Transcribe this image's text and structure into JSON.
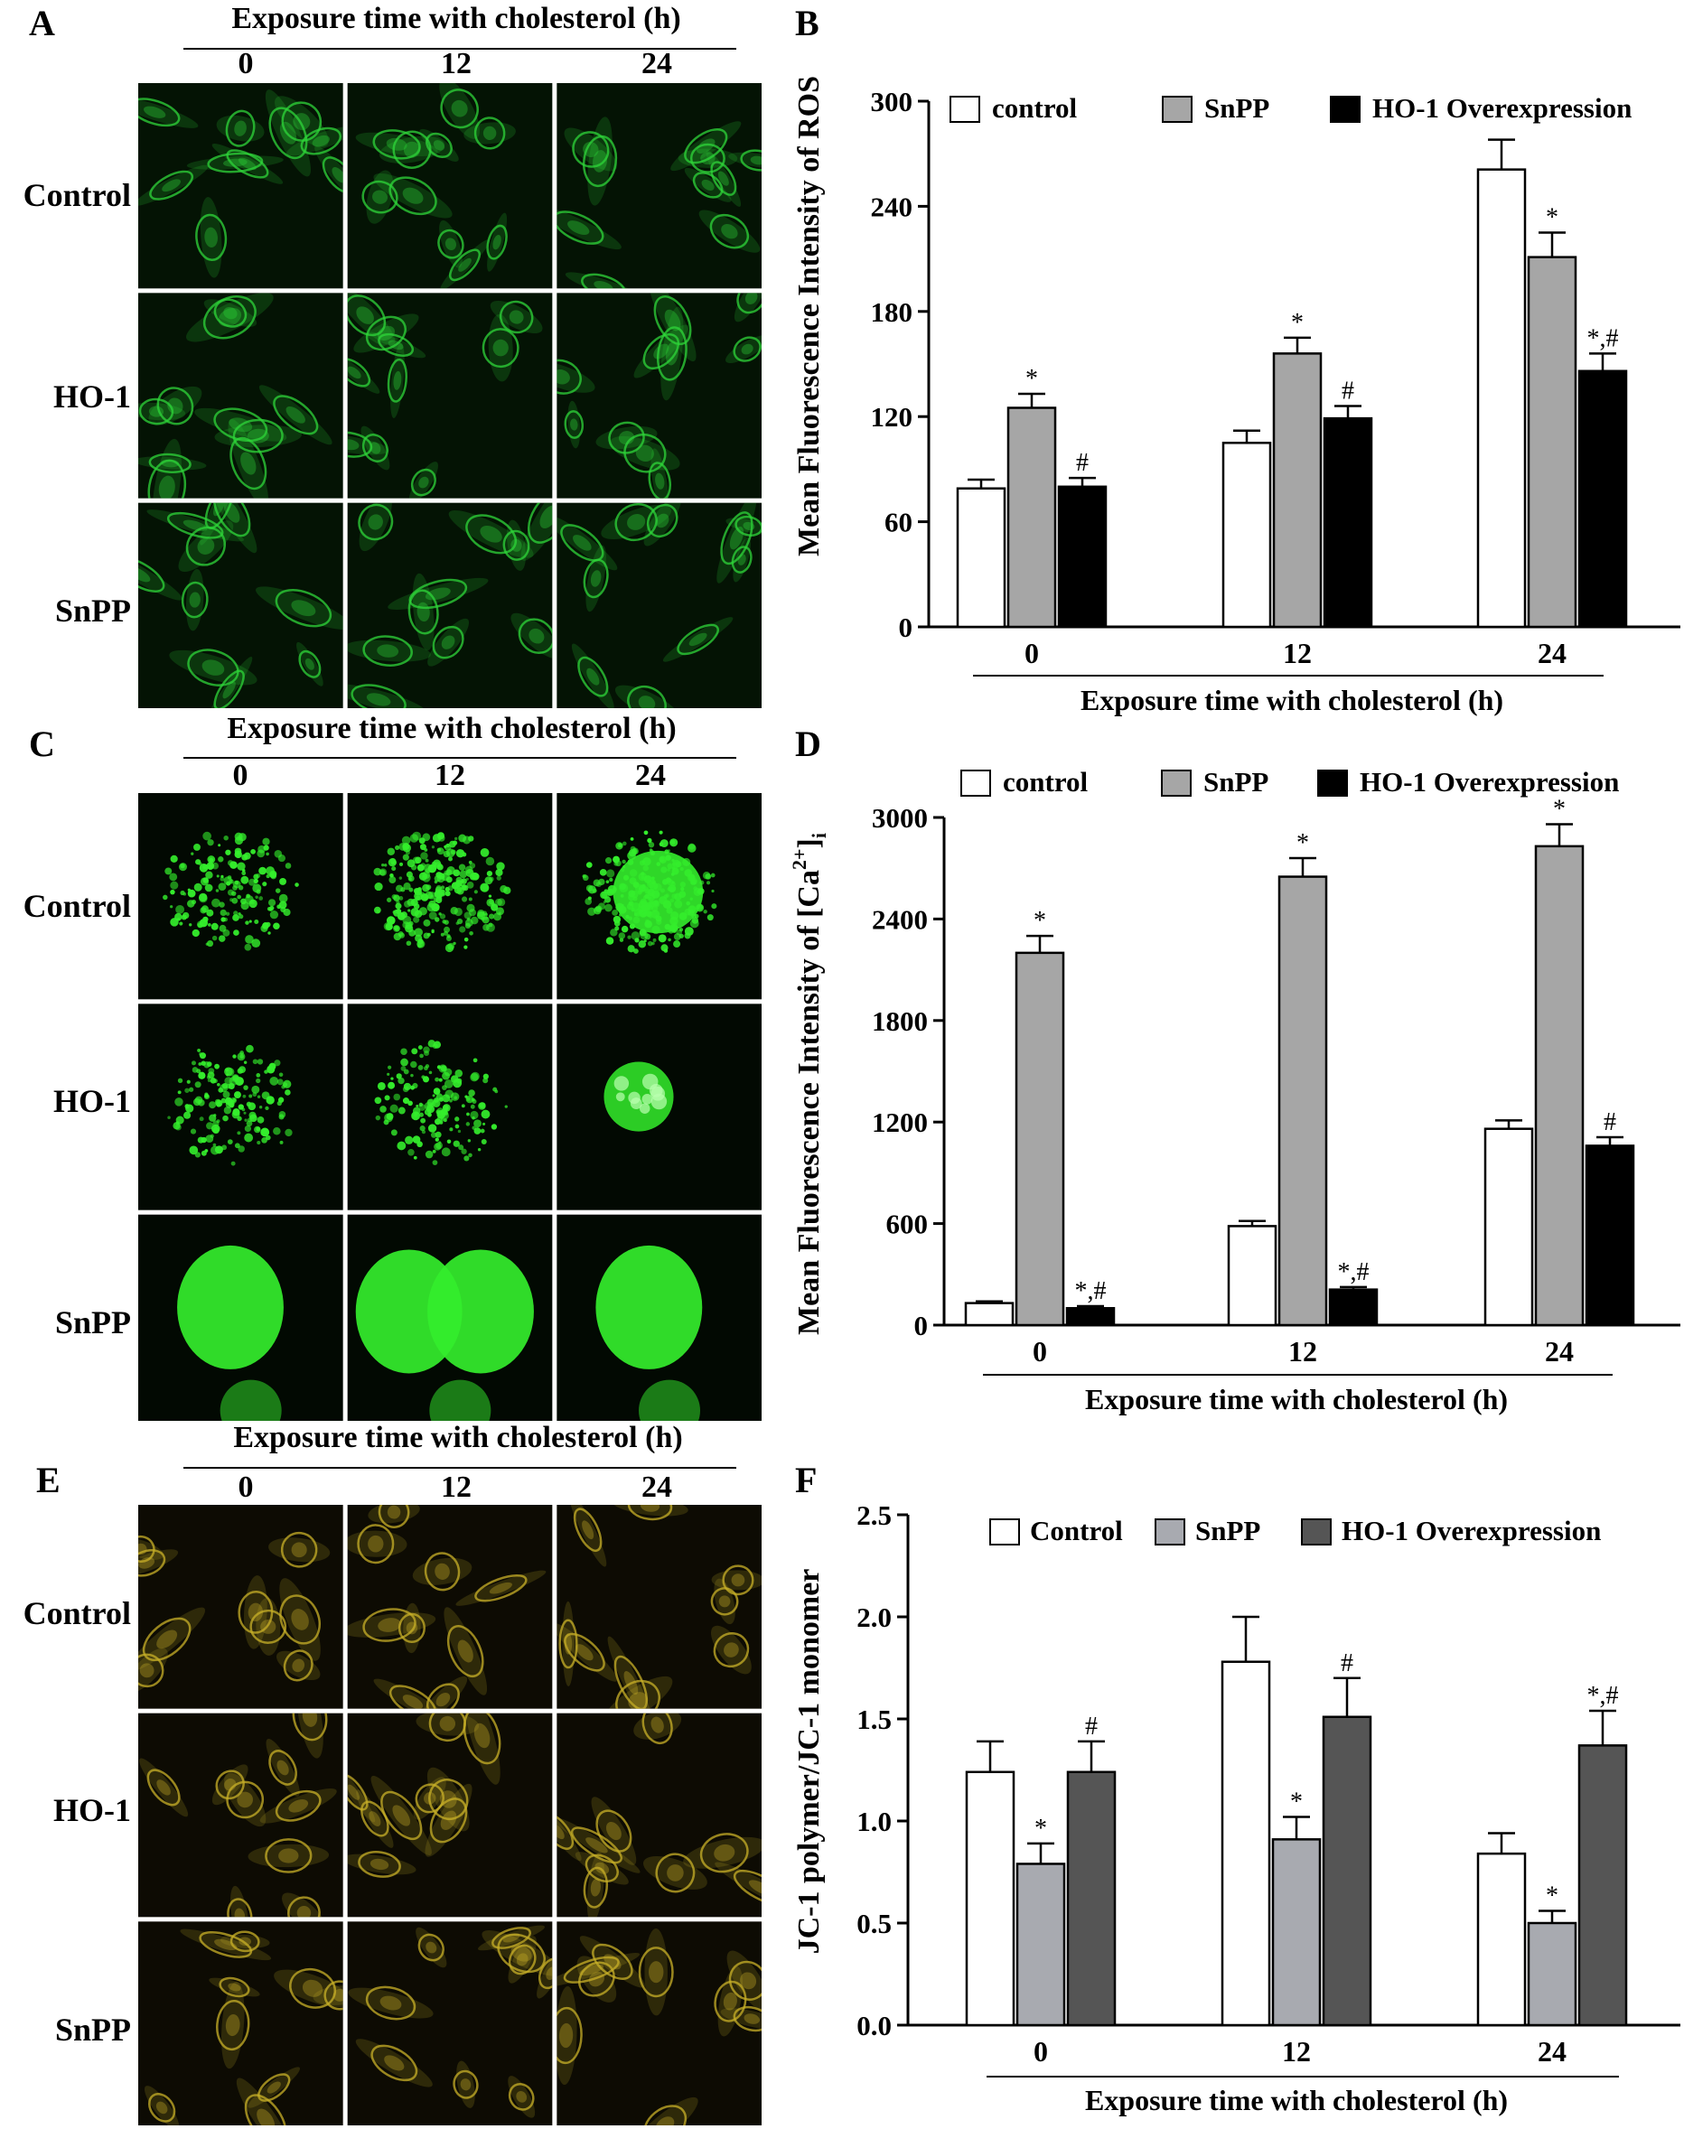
{
  "panels": {
    "A": {
      "letter": "A",
      "header": "Exposure time with cholesterol (h)",
      "columns": [
        "0",
        "12",
        "24"
      ],
      "rows": [
        "Control",
        "HO-1",
        "SnPP"
      ],
      "style": "ros",
      "colors": {
        "bg": "#041304",
        "cell": "#2fd63a"
      }
    },
    "C": {
      "letter": "C",
      "header": "Exposure time with cholesterol (h)",
      "columns": [
        "0",
        "12",
        "24"
      ],
      "rows": [
        "Control",
        "HO-1",
        "SnPP"
      ],
      "style": "calcium",
      "colors": {
        "bg": "#020902",
        "cell": "#34ee2c"
      }
    },
    "E": {
      "letter": "E",
      "header": "Exposure time with cholesterol (h)",
      "columns": [
        "0",
        "12",
        "24"
      ],
      "rows": [
        "Control",
        "HO-1",
        "SnPP"
      ],
      "style": "jc1",
      "colors": {
        "bg": "#0d0b03",
        "cell": "#c8b028"
      }
    }
  },
  "chart_data": [
    {
      "id": "B",
      "letter": "B",
      "type": "bar",
      "categories": [
        "0",
        "12",
        "24"
      ],
      "xlabel": "Exposure time with cholesterol (h)",
      "ylabel": "Mean Fluorescence Intensity of ROS",
      "ylim": [
        0,
        300
      ],
      "yticks": [
        "0",
        "60",
        "120",
        "180",
        "240",
        "300"
      ],
      "legend_position": "top",
      "series": [
        {
          "name": "control",
          "values": [
            79,
            105,
            261
          ],
          "errors": [
            5,
            7,
            17
          ],
          "color": "#ffffff",
          "labels": [
            "",
            "",
            ""
          ]
        },
        {
          "name": "SnPP",
          "values": [
            125,
            156,
            211
          ],
          "errors": [
            8,
            9,
            14
          ],
          "color": "#a6a6a6",
          "labels": [
            "*",
            "*",
            "*"
          ]
        },
        {
          "name": "HO-1 Overexpression",
          "values": [
            80,
            119,
            146
          ],
          "errors": [
            5,
            7,
            10
          ],
          "color": "#000000",
          "labels": [
            "#",
            "#",
            "*,#"
          ]
        }
      ]
    },
    {
      "id": "D",
      "letter": "D",
      "type": "bar",
      "categories": [
        "0",
        "12",
        "24"
      ],
      "xlabel": "Exposure time with cholesterol (h)",
      "ylabel_main": "Mean Fluorescence Intensity of [Ca",
      "ylabel_sup": "2+",
      "ylabel_end": "]",
      "ylabel_sub": "i",
      "ylim": [
        0,
        3000
      ],
      "yticks": [
        "0",
        "600",
        "1200",
        "1800",
        "2400",
        "3000"
      ],
      "legend_position": "top",
      "series": [
        {
          "name": "control",
          "values": [
            130,
            585,
            1160
          ],
          "errors": [
            10,
            30,
            50
          ],
          "color": "#ffffff",
          "labels": [
            "",
            "",
            ""
          ]
        },
        {
          "name": "SnPP",
          "values": [
            2200,
            2650,
            2830
          ],
          "errors": [
            100,
            110,
            130
          ],
          "color": "#a6a6a6",
          "labels": [
            "*",
            "*",
            "*"
          ]
        },
        {
          "name": "HO-1 Overexpression",
          "values": [
            100,
            210,
            1060
          ],
          "errors": [
            12,
            15,
            50
          ],
          "color": "#000000",
          "labels": [
            "*,#",
            "*,#",
            "#"
          ]
        }
      ]
    },
    {
      "id": "F",
      "letter": "F",
      "type": "bar",
      "categories": [
        "0",
        "12",
        "24"
      ],
      "xlabel": "Exposure time with cholesterol (h)",
      "ylabel": "JC-1 polymer/JC-1 monomer",
      "ylim": [
        0,
        2.5
      ],
      "yticks": [
        "0.0",
        "0.5",
        "1.0",
        "1.5",
        "2.0",
        "2.5"
      ],
      "legend_position": "top",
      "series": [
        {
          "name": "Control",
          "values": [
            1.24,
            1.78,
            0.84
          ],
          "errors": [
            0.15,
            0.22,
            0.1
          ],
          "color": "#ffffff",
          "labels": [
            "",
            "",
            ""
          ]
        },
        {
          "name": "SnPP",
          "values": [
            0.79,
            0.91,
            0.5
          ],
          "errors": [
            0.1,
            0.11,
            0.06
          ],
          "color": "#a8aab0",
          "labels": [
            "*",
            "*",
            "*"
          ]
        },
        {
          "name": "HO-1 Overexpression",
          "values": [
            1.24,
            1.51,
            1.37
          ],
          "errors": [
            0.15,
            0.19,
            0.17
          ],
          "color": "#555555",
          "labels": [
            "#",
            "#",
            "*,#"
          ]
        }
      ]
    }
  ]
}
